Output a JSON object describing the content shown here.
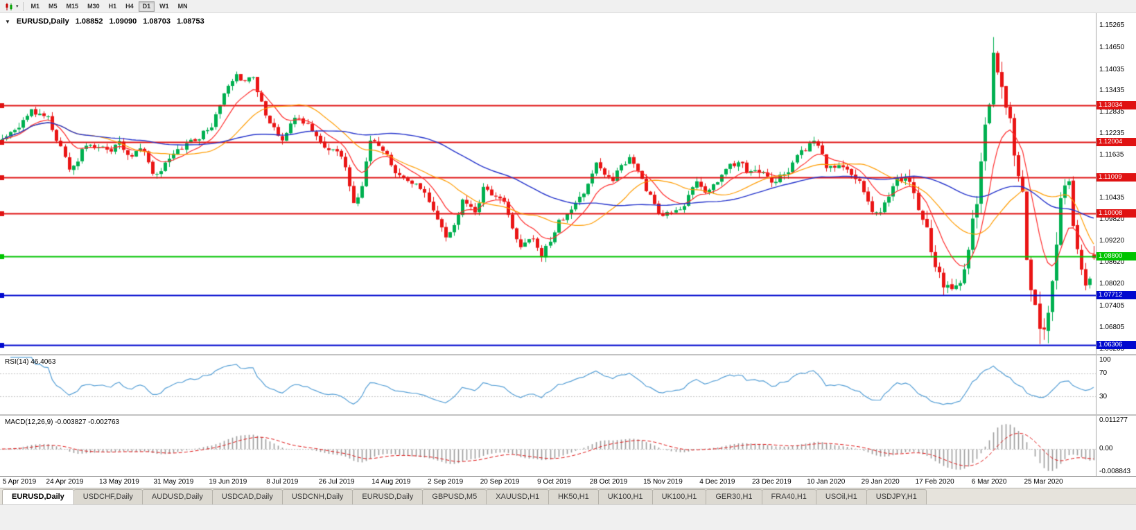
{
  "toolbar": {
    "timeframes": [
      "M1",
      "M5",
      "M15",
      "M30",
      "H1",
      "H4",
      "D1",
      "W1",
      "MN"
    ],
    "active_timeframe": "D1"
  },
  "chart_header": {
    "symbol_label": "EURUSD,Daily",
    "open": "1.08852",
    "high": "1.09090",
    "low": "1.08703",
    "close": "1.08753"
  },
  "chart_data": {
    "type": "candlestick",
    "symbol": "EURUSD",
    "period": "Daily",
    "num_bars": 262,
    "first_x_label_bar": 2,
    "bars_per_x_label": 13,
    "x_labels": [
      "5 Apr 2019",
      "24 Apr 2019",
      "13 May 2019",
      "31 May 2019",
      "19 Jun 2019",
      "8 Jul 2019",
      "26 Jul 2019",
      "14 Aug 2019",
      "2 Sep 2019",
      "20 Sep 2019",
      "9 Oct 2019",
      "28 Oct 2019",
      "15 Nov 2019",
      "4 Dec 2019",
      "23 Dec 2019",
      "10 Jan 2020",
      "29 Jan 2020",
      "17 Feb 2020",
      "6 Mar 2020",
      "25 Mar 2020"
    ],
    "y_range": [
      1.0606,
      1.1562
    ],
    "y_axis_ticks": [
      "1.15265",
      "1.14650",
      "1.14035",
      "1.13435",
      "1.12835",
      "1.12235",
      "1.11635",
      "1.11020",
      "1.10435",
      "1.09820",
      "1.09220",
      "1.08620",
      "1.08020",
      "1.07405",
      "1.06805",
      "1.06205"
    ],
    "horizontal_lines": [
      {
        "price": 1.13034,
        "label": "1.13034",
        "color": "#e01212"
      },
      {
        "price": 1.12004,
        "label": "1.12004",
        "color": "#e01212"
      },
      {
        "price": 1.11009,
        "label": "1.11009",
        "color": "#e01212"
      },
      {
        "price": 1.10008,
        "label": "1.10008",
        "color": "#e01212"
      },
      {
        "price": 1.088,
        "label": "1.08800",
        "color": "#00c400"
      },
      {
        "price": 1.07712,
        "label": "1.07712",
        "color": "#0008cf"
      },
      {
        "price": 1.06306,
        "label": "1.06306",
        "color": "#0008cf"
      }
    ],
    "close_anchors": [
      [
        0,
        1.1215
      ],
      [
        4,
        1.125
      ],
      [
        7,
        1.128
      ],
      [
        11,
        1.1255
      ],
      [
        16,
        1.1125
      ],
      [
        20,
        1.12
      ],
      [
        24,
        1.1175
      ],
      [
        28,
        1.1195
      ],
      [
        31,
        1.116
      ],
      [
        34,
        1.118
      ],
      [
        36,
        1.111
      ],
      [
        39,
        1.114
      ],
      [
        43,
        1.1175
      ],
      [
        47,
        1.1215
      ],
      [
        50,
        1.1255
      ],
      [
        53,
        1.1345
      ],
      [
        56,
        1.14
      ],
      [
        58,
        1.137
      ],
      [
        60,
        1.139
      ],
      [
        63,
        1.1285
      ],
      [
        67,
        1.1215
      ],
      [
        70,
        1.127
      ],
      [
        73,
        1.125
      ],
      [
        76,
        1.1215
      ],
      [
        79,
        1.118
      ],
      [
        82,
        1.1135
      ],
      [
        84,
        1.1045
      ],
      [
        86,
        1.1085
      ],
      [
        88,
        1.12
      ],
      [
        91,
        1.117
      ],
      [
        93,
        1.114
      ],
      [
        96,
        1.1095
      ],
      [
        99,
        1.109
      ],
      [
        102,
        1.104
      ],
      [
        104,
        1.0995
      ],
      [
        106,
        1.0925
      ],
      [
        108,
        1.0965
      ],
      [
        110,
        1.1035
      ],
      [
        113,
        1.1005
      ],
      [
        115,
        1.107
      ],
      [
        118,
        1.104
      ],
      [
        120,
        1.1015
      ],
      [
        122,
        1.095
      ],
      [
        124,
        1.09
      ],
      [
        127,
        1.093
      ],
      [
        129,
        1.089
      ],
      [
        131,
        1.093
      ],
      [
        133,
        1.098
      ],
      [
        136,
        1.1
      ],
      [
        138,
        1.104
      ],
      [
        140,
        1.1075
      ],
      [
        142,
        1.115
      ],
      [
        144,
        1.1125
      ],
      [
        146,
        1.111
      ],
      [
        148,
        1.114
      ],
      [
        150,
        1.1155
      ],
      [
        152,
        1.112
      ],
      [
        154,
        1.107
      ],
      [
        157,
        1.101
      ],
      [
        160,
        1.1
      ],
      [
        162,
        1.1015
      ],
      [
        164,
        1.105
      ],
      [
        166,
        1.108
      ],
      [
        168,
        1.106
      ],
      [
        170,
        1.108
      ],
      [
        172,
        1.11
      ],
      [
        174,
        1.113
      ],
      [
        176,
        1.1145
      ],
      [
        178,
        1.112
      ],
      [
        180,
        1.1135
      ],
      [
        182,
        1.1115
      ],
      [
        184,
        1.1088
      ],
      [
        186,
        1.1105
      ],
      [
        188,
        1.112
      ],
      [
        190,
        1.1155
      ],
      [
        192,
        1.118
      ],
      [
        194,
        1.121
      ],
      [
        196,
        1.116
      ],
      [
        197,
        1.112
      ],
      [
        199,
        1.1135
      ],
      [
        201,
        1.113
      ],
      [
        203,
        1.111
      ],
      [
        205,
        1.1095
      ],
      [
        207,
        1.105
      ],
      [
        208,
        1.102
      ],
      [
        210,
        1.1005
      ],
      [
        212,
        1.1045
      ],
      [
        214,
        1.1095
      ],
      [
        216,
        1.109
      ],
      [
        218,
        1.106
      ],
      [
        219,
        1.1015
      ],
      [
        221,
        1.0945
      ],
      [
        223,
        1.084
      ],
      [
        225,
        1.08
      ],
      [
        226,
        1.079
      ],
      [
        228,
        1.0805
      ],
      [
        230,
        1.085
      ],
      [
        231,
        1.089
      ],
      [
        232,
        1.098
      ],
      [
        233,
        1.105
      ],
      [
        234,
        1.1135
      ],
      [
        235,
        1.123
      ],
      [
        236,
        1.1285
      ],
      [
        237,
        1.144
      ],
      [
        238,
        1.14
      ],
      [
        239,
        1.136
      ],
      [
        240,
        1.131
      ],
      [
        241,
        1.128
      ],
      [
        242,
        1.118
      ],
      [
        243,
        1.114
      ],
      [
        244,
        1.1105
      ],
      [
        245,
        1.092
      ],
      [
        246,
        1.084
      ],
      [
        247,
        1.077
      ],
      [
        248,
        1.07
      ],
      [
        249,
        1.069
      ],
      [
        250,
        1.0727
      ],
      [
        251,
        1.08
      ],
      [
        252,
        1.089
      ],
      [
        253,
        1.1014
      ],
      [
        254,
        1.106
      ],
      [
        255,
        1.109
      ],
      [
        256,
        1.095
      ],
      [
        257,
        1.088
      ],
      [
        258,
        1.082
      ],
      [
        259,
        1.0791
      ],
      [
        260,
        1.08
      ],
      [
        261,
        1.08753
      ]
    ],
    "forced_bars": {
      "237": {
        "high": 1.1495
      },
      "248": {
        "low": 1.0634
      },
      "261": {
        "open": 1.08852,
        "high": 1.0909,
        "low": 1.08703,
        "close": 1.08753
      }
    },
    "volatility_zones": [
      [
        0,
        216,
        0.0018
      ],
      [
        217,
        231,
        0.003
      ],
      [
        232,
        252,
        0.0045
      ],
      [
        253,
        261,
        0.0025
      ]
    ],
    "colors": {
      "up": "#00b050",
      "down": "#ea1515",
      "background": "#ffffff"
    },
    "moving_averages": [
      {
        "kind": "ema",
        "period": 10,
        "color": "#ff2a2a",
        "width": 1.2
      },
      {
        "kind": "sma",
        "period": 21,
        "color": "#ff9c00",
        "width": 1.2
      },
      {
        "kind": "sma",
        "period": 55,
        "color": "#2433cc",
        "width": 1.4
      }
    ],
    "rsi": {
      "label": "RSI(14) 46.4063",
      "period": 14,
      "levels": [
        70,
        30
      ],
      "axis_ticks": [
        "100",
        "70",
        "30"
      ],
      "color": "#559fd6"
    },
    "macd": {
      "label": "MACD(12,26,9) -0.003827 -0.002763",
      "fast": 12,
      "slow": 26,
      "signal_period": 9,
      "histogram_color": "#9c9c9c",
      "signal_color": "#e01515",
      "axis_ticks": [
        "0.011277",
        "0.00",
        "-0.008843"
      ]
    }
  },
  "bottom_tabs": [
    {
      "label": "EURUSD,Daily",
      "active": true
    },
    {
      "label": "USDCHF,Daily",
      "active": false
    },
    {
      "label": "AUDUSD,Daily",
      "active": false
    },
    {
      "label": "USDCAD,Daily",
      "active": false
    },
    {
      "label": "USDCNH,Daily",
      "active": false
    },
    {
      "label": "EURUSD,Daily",
      "active": false
    },
    {
      "label": "GBPUSD,M5",
      "active": false
    },
    {
      "label": "XAUUSD,H1",
      "active": false
    },
    {
      "label": "HK50,H1",
      "active": false
    },
    {
      "label": "UK100,H1",
      "active": false
    },
    {
      "label": "UK100,H1",
      "active": false
    },
    {
      "label": "GER30,H1",
      "active": false
    },
    {
      "label": "FRA40,H1",
      "active": false
    },
    {
      "label": "USOil,H1",
      "active": false
    },
    {
      "label": "USDJPY,H1",
      "active": false
    }
  ]
}
